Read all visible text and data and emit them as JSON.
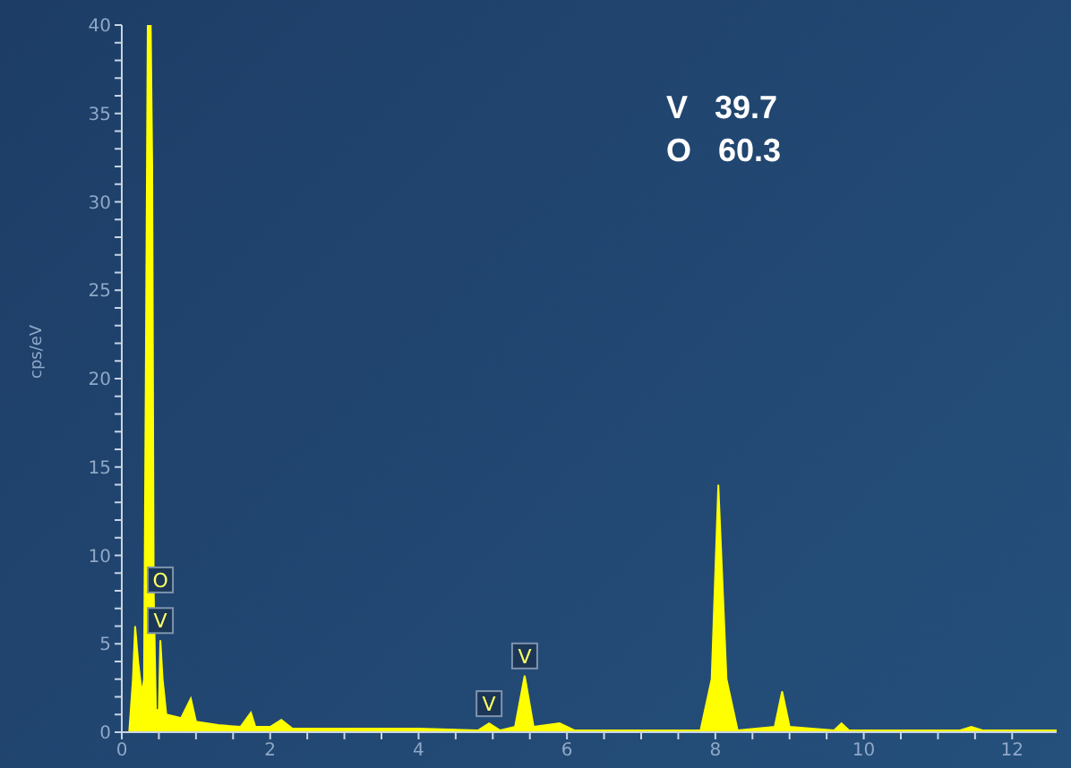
{
  "chart_data": {
    "type": "area",
    "ylabel": "cps/eV",
    "x": [
      0.1,
      0.15,
      0.18,
      0.22,
      0.27,
      0.3,
      0.33,
      0.35,
      0.39,
      0.41,
      0.43,
      0.46,
      0.5,
      0.52,
      0.55,
      0.6,
      0.8,
      0.93,
      1.0,
      1.3,
      1.6,
      1.74,
      1.8,
      2.0,
      2.15,
      2.3,
      3,
      4,
      4.8,
      4.95,
      5.1,
      5.3,
      5.43,
      5.55,
      5.9,
      6.1,
      7.8,
      7.95,
      8.04,
      8.15,
      8.3,
      8.8,
      8.9,
      9.0,
      9.6,
      9.7,
      9.8,
      11.3,
      11.45,
      11.6,
      12.6
    ],
    "series": [
      {
        "color": "#ffff00",
        "values": [
          0,
          3,
          6,
          4,
          2.2,
          3,
          25,
          40,
          40,
          32,
          8,
          1.2,
          1.3,
          5.2,
          3,
          1,
          0.8,
          1.9,
          0.6,
          0.4,
          0.3,
          1.1,
          0.3,
          0.3,
          0.7,
          0.2,
          0.2,
          0.2,
          0.1,
          0.5,
          0.1,
          0.3,
          3.2,
          0.3,
          0.5,
          0.1,
          0.1,
          3,
          14,
          3,
          0.1,
          0.3,
          2.3,
          0.3,
          0.1,
          0.5,
          0.1,
          0.1,
          0.3,
          0.1,
          0.1
        ]
      }
    ],
    "xlim": [
      0,
      12.6
    ],
    "xticks": [
      0,
      {
        "value": 0.5,
        "label": null
      },
      {
        "value": 1,
        "label": null
      },
      {
        "value": 1.5,
        "label": null
      },
      2,
      {
        "value": 2.5,
        "label": null
      },
      {
        "value": 3,
        "label": null
      },
      {
        "value": 3.5,
        "label": null
      },
      4,
      {
        "value": 4.5,
        "label": null
      },
      {
        "value": 5,
        "label": null
      },
      {
        "value": 5.5,
        "label": null
      },
      6,
      {
        "value": 6.5,
        "label": null
      },
      {
        "value": 7,
        "label": null
      },
      {
        "value": 7.5,
        "label": null
      },
      8,
      {
        "value": 8.5,
        "label": null
      },
      {
        "value": 9,
        "label": null
      },
      {
        "value": 9.5,
        "label": null
      },
      10,
      {
        "value": 10.5,
        "label": null
      },
      {
        "value": 11,
        "label": null
      },
      {
        "value": 11.5,
        "label": null
      },
      12
    ],
    "ylim": [
      0,
      40
    ],
    "yticks": [
      0,
      {
        "value": 1,
        "label": null
      },
      {
        "value": 2,
        "label": null
      },
      {
        "value": 3,
        "label": null
      },
      {
        "value": 4,
        "label": null
      },
      5,
      {
        "value": 6,
        "label": null
      },
      {
        "value": 7,
        "label": null
      },
      {
        "value": 8,
        "label": null
      },
      {
        "value": 9,
        "label": null
      },
      10,
      {
        "value": 11,
        "label": null
      },
      {
        "value": 12,
        "label": null
      },
      {
        "value": 13,
        "label": null
      },
      {
        "value": 14,
        "label": null
      },
      15,
      {
        "value": 16,
        "label": null
      },
      {
        "value": 17,
        "label": null
      },
      {
        "value": 18,
        "label": null
      },
      {
        "value": 19,
        "label": null
      },
      20,
      {
        "value": 21,
        "label": null
      },
      {
        "value": 22,
        "label": null
      },
      {
        "value": 23,
        "label": null
      },
      {
        "value": 24,
        "label": null
      },
      25,
      {
        "value": 26,
        "label": null
      },
      {
        "value": 27,
        "label": null
      },
      {
        "value": 28,
        "label": null
      },
      {
        "value": 29,
        "label": null
      },
      30,
      {
        "value": 31,
        "label": null
      },
      {
        "value": 32,
        "label": null
      },
      {
        "value": 33,
        "label": null
      },
      {
        "value": 34,
        "label": null
      },
      35,
      {
        "value": 36,
        "label": null
      },
      {
        "value": 37,
        "label": null
      },
      {
        "value": 38,
        "label": null
      },
      {
        "value": 39,
        "label": null
      },
      40
    ],
    "grid": false,
    "legend": false,
    "annotations": [
      {
        "text": "O",
        "x": 0.52,
        "y": 7.5
      },
      {
        "text": "V",
        "x": 0.52,
        "y": 5.2
      },
      {
        "text": "V",
        "x": 4.95,
        "y": 0.5
      },
      {
        "text": "V",
        "x": 5.43,
        "y": 3.2
      },
      "V   39.7",
      "O   60.3"
    ]
  }
}
